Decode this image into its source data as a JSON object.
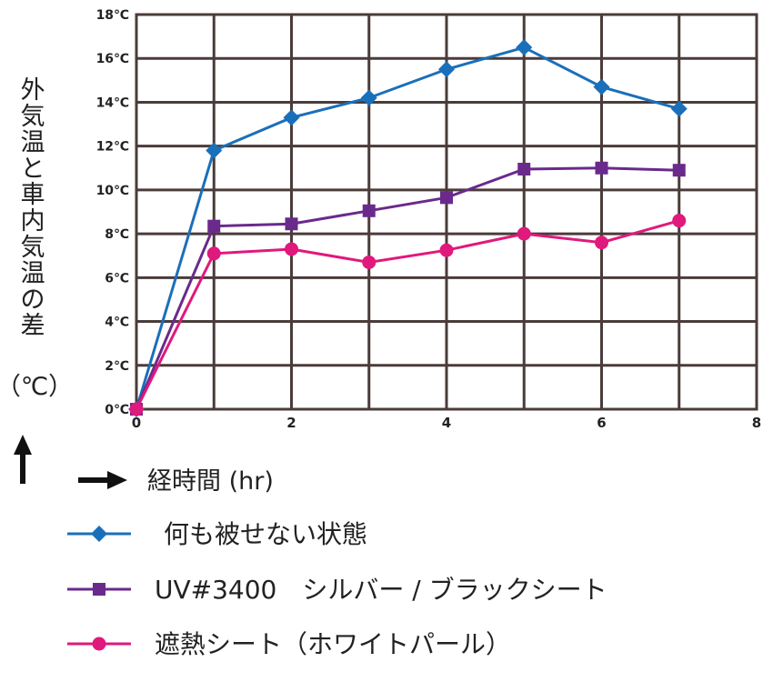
{
  "chart_data": {
    "type": "line",
    "ylabel": "外気温と車内気温の差",
    "yunit": "（℃）",
    "xlabel": "経時間 (hr)",
    "xlim": [
      0,
      8
    ],
    "ylim": [
      0,
      18
    ],
    "xticks": [
      0,
      2,
      4,
      6,
      8
    ],
    "yticks": [
      0,
      2,
      4,
      6,
      8,
      10,
      12,
      14,
      16,
      18
    ],
    "ytick_labels": [
      "0℃",
      "2℃",
      "4℃",
      "6℃",
      "8℃",
      "10℃",
      "12℃",
      "14℃",
      "16℃",
      "18℃"
    ],
    "grid": true,
    "legend_position": "bottom",
    "series": [
      {
        "name": "何も被せない状態",
        "color": "#1a6fba",
        "marker": "diamond",
        "x": [
          0,
          1,
          2,
          3,
          4,
          5,
          6,
          7
        ],
        "y": [
          0,
          11.8,
          13.3,
          14.2,
          15.5,
          16.5,
          14.7,
          13.7
        ]
      },
      {
        "name": "UV#3400　シルバー / ブラックシート",
        "color": "#6a2a8c",
        "marker": "square",
        "x": [
          0,
          1,
          2,
          3,
          4,
          5,
          6,
          7
        ],
        "y": [
          0,
          8.35,
          8.45,
          9.05,
          9.65,
          10.95,
          11.0,
          10.9
        ]
      },
      {
        "name": "遮熱シート（ホワイトパール）",
        "color": "#e0197d",
        "marker": "circle",
        "x": [
          0,
          1,
          2,
          3,
          4,
          5,
          6,
          7
        ],
        "y": [
          0,
          7.1,
          7.3,
          6.7,
          7.25,
          8.0,
          7.6,
          8.6
        ]
      }
    ]
  }
}
